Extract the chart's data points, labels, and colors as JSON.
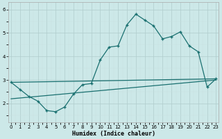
{
  "xlabel": "Humidex (Indice chaleur)",
  "x": [
    0,
    1,
    2,
    3,
    4,
    5,
    6,
    7,
    8,
    9,
    10,
    11,
    12,
    13,
    14,
    15,
    16,
    17,
    18,
    19,
    20,
    21,
    22,
    23
  ],
  "line1": [
    2.9,
    2.6,
    2.3,
    2.1,
    1.7,
    1.65,
    1.85,
    2.4,
    2.8,
    2.85,
    3.85,
    4.4,
    4.45,
    5.35,
    5.8,
    5.55,
    5.3,
    4.75,
    4.85,
    5.05,
    4.45,
    4.2,
    2.7,
    3.05
  ],
  "line2_x": [
    0,
    23
  ],
  "line2_y": [
    2.9,
    3.05
  ],
  "line3_x": [
    0,
    23
  ],
  "line3_y": [
    2.2,
    3.0
  ],
  "color": "#1a7070",
  "bg_color": "#cce8e8",
  "grid_color_major": "#b0cccc",
  "grid_color_minor": "#c8e0e0",
  "ylim": [
    1.2,
    6.3
  ],
  "xlim": [
    -0.3,
    23.3
  ],
  "yticks": [
    2,
    3,
    4,
    5,
    6
  ],
  "xticks": [
    0,
    1,
    2,
    3,
    4,
    5,
    6,
    7,
    8,
    9,
    10,
    11,
    12,
    13,
    14,
    15,
    16,
    17,
    18,
    19,
    20,
    21,
    22,
    23
  ]
}
